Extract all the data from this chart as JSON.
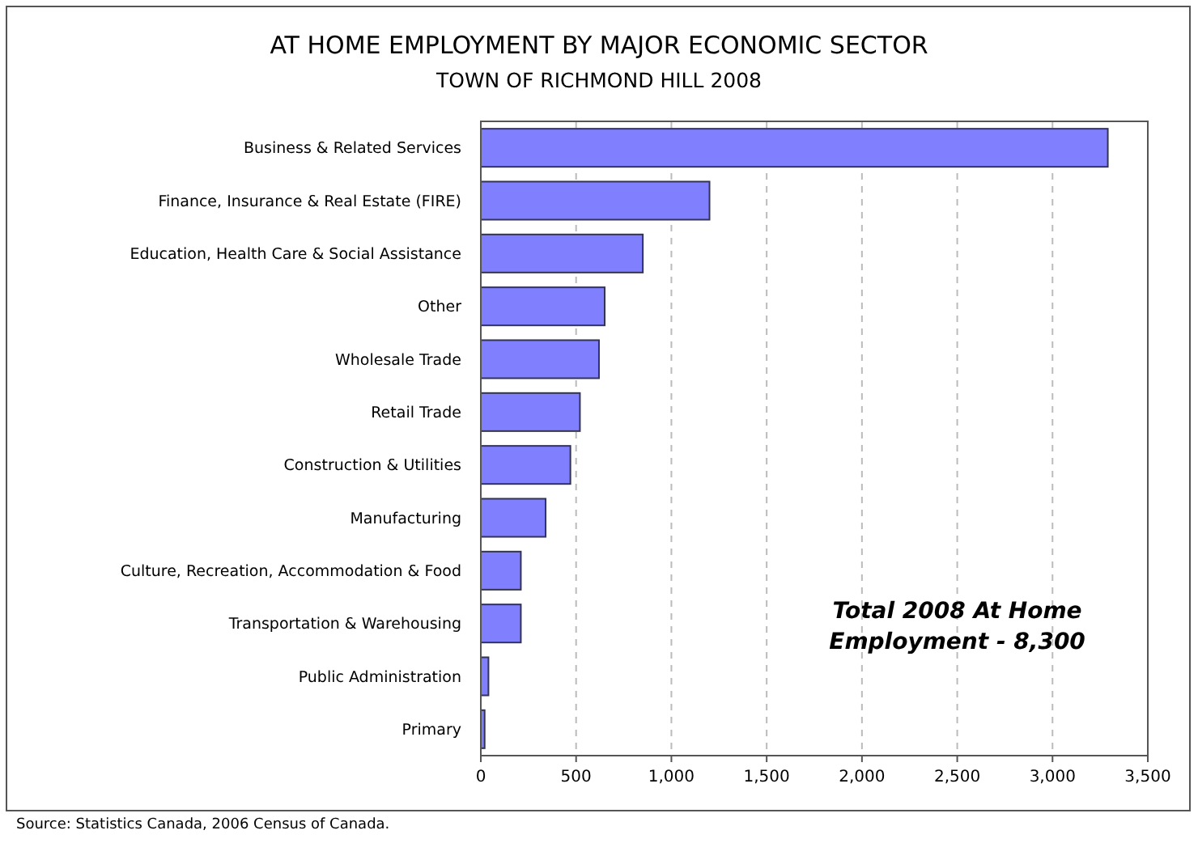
{
  "chart_data": {
    "type": "bar",
    "orientation": "horizontal",
    "title": "AT HOME EMPLOYMENT BY MAJOR ECONOMIC SECTOR",
    "subtitle": "TOWN OF RICHMOND HILL 2008",
    "categories": [
      "Business & Related Services",
      "Finance, Insurance & Real Estate (FIRE)",
      "Education, Health Care & Social Assistance",
      "Other",
      "Wholesale Trade",
      "Retail Trade",
      "Construction & Utilities",
      "Manufacturing",
      "Culture, Recreation, Accommodation & Food",
      "Transportation & Warehousing",
      "Public Administration",
      "Primary"
    ],
    "values": [
      3290,
      1200,
      850,
      650,
      620,
      520,
      470,
      340,
      210,
      210,
      40,
      20
    ],
    "color": "#8080ff",
    "xlim": [
      0,
      3500
    ],
    "xticks": [
      0,
      {
        "value": 500,
        "label": "500"
      },
      {
        "value": 1000,
        "label": "1,000"
      },
      {
        "value": 1500,
        "label": "1,500"
      },
      {
        "value": 2000,
        "label": "2,000"
      },
      {
        "value": 2500,
        "label": "2,500"
      },
      {
        "value": 3000,
        "label": "3,000"
      },
      {
        "value": 3500,
        "label": "3,500"
      }
    ],
    "grid": "x",
    "annotations": [
      "Total 2008 At Home Employment - 8,300",
      "Source: Statistics Canada, 2006 Census of Canada."
    ]
  }
}
